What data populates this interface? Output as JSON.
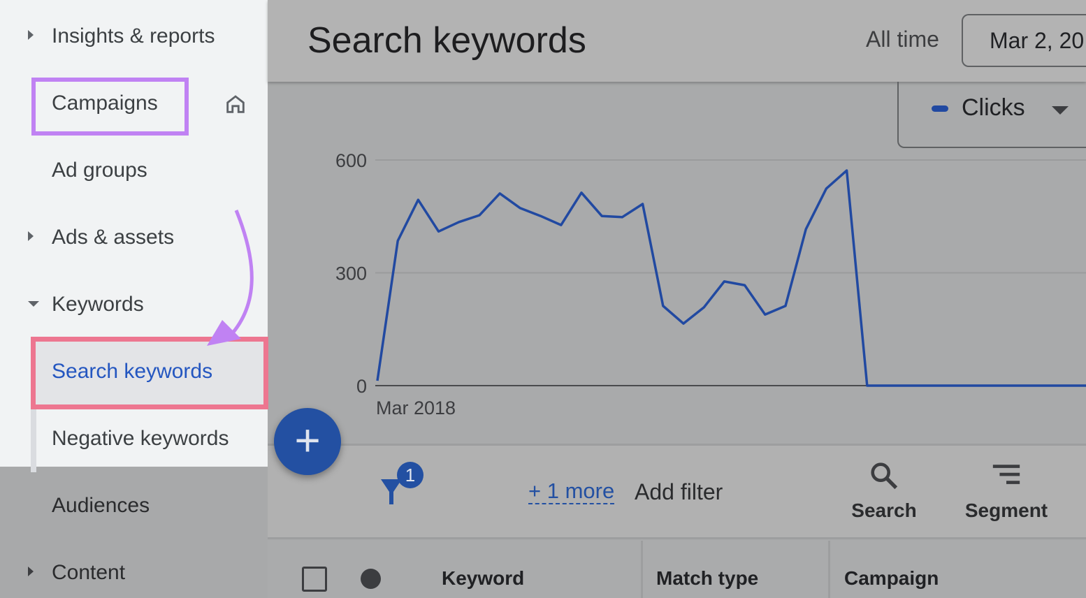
{
  "sidebar": {
    "items": [
      {
        "label": "Insights & reports",
        "expander": "collapsed"
      },
      {
        "label": "Campaigns",
        "icon": "home-icon"
      },
      {
        "label": "Ad groups"
      },
      {
        "label": "Ads & assets",
        "expander": "collapsed"
      },
      {
        "label": "Keywords",
        "expander": "expanded"
      },
      {
        "label": "Search keywords",
        "selected": true
      },
      {
        "label": "Negative keywords"
      },
      {
        "label": "Audiences"
      },
      {
        "label": "Content",
        "expander": "collapsed"
      }
    ]
  },
  "annotations": {
    "campaigns_box_color": "#c082f3",
    "search_box_color": "#ed7690",
    "arrow_color": "#c082f3"
  },
  "header": {
    "title": "Search keywords",
    "range_label": "All time",
    "date_value": "Mar 2, 20"
  },
  "metric_selector": {
    "label": "Clicks",
    "color": "#2149a1"
  },
  "chart_data": {
    "type": "line",
    "x_tick_labels": [
      "Mar 2018"
    ],
    "y_ticks": [
      0,
      300,
      600
    ],
    "ylim": [
      0,
      600
    ],
    "grid": true,
    "series": [
      {
        "name": "Clicks",
        "color": "#2149a1",
        "values": [
          13,
          385,
          494,
          410,
          435,
          453,
          511,
          472,
          451,
          427,
          513,
          451,
          448,
          483,
          212,
          165,
          208,
          277,
          267,
          189,
          212,
          416,
          524,
          572,
          0,
          0,
          0,
          0,
          0,
          0,
          0,
          0,
          0,
          0,
          0,
          0,
          0,
          0,
          0,
          0,
          0
        ]
      }
    ]
  },
  "filter_bar": {
    "filter_count": "1",
    "more_link": "+ 1 more",
    "add_filter": "Add filter",
    "search_label": "Search",
    "segment_label": "Segment"
  },
  "table": {
    "columns": [
      "Keyword",
      "Match type",
      "Campaign"
    ]
  },
  "fab": {
    "label": "+"
  }
}
